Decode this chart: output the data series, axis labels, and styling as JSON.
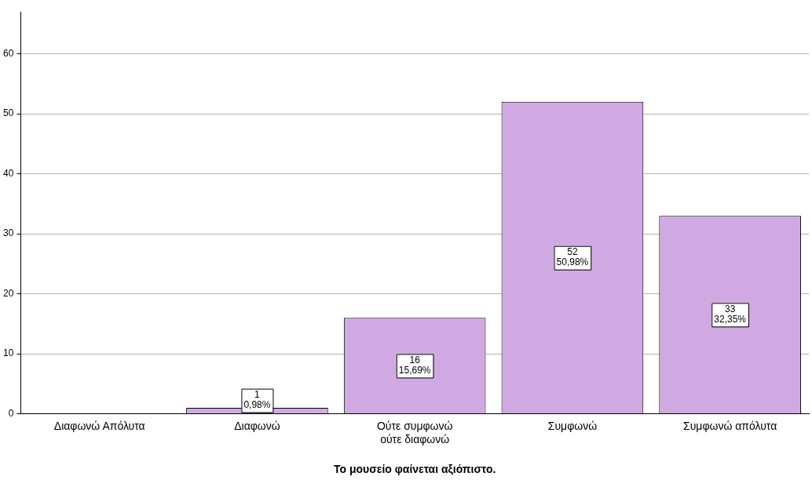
{
  "chart_data": {
    "type": "bar",
    "xlabel": "Το μουσείο φαίνεται αξιόπιστο.",
    "categories": [
      "Διαφωνώ Απόλυτα",
      "Διαφωνώ",
      "Ούτε συμφωνώ ούτε διαφωνώ",
      "Συμφωνώ",
      "Συμφωνώ απόλυτα"
    ],
    "values": [
      0,
      1,
      16,
      52,
      33
    ],
    "value_labels": [
      null,
      "1\n0,98%",
      "16\n15,69%",
      "52\n50,98%",
      "33\n32,35%"
    ],
    "color": "#d0a9e2",
    "ylim": [
      0,
      67
    ],
    "yticks": [
      0,
      10,
      20,
      30,
      40,
      50,
      60
    ],
    "grid": "y",
    "legend": false
  }
}
